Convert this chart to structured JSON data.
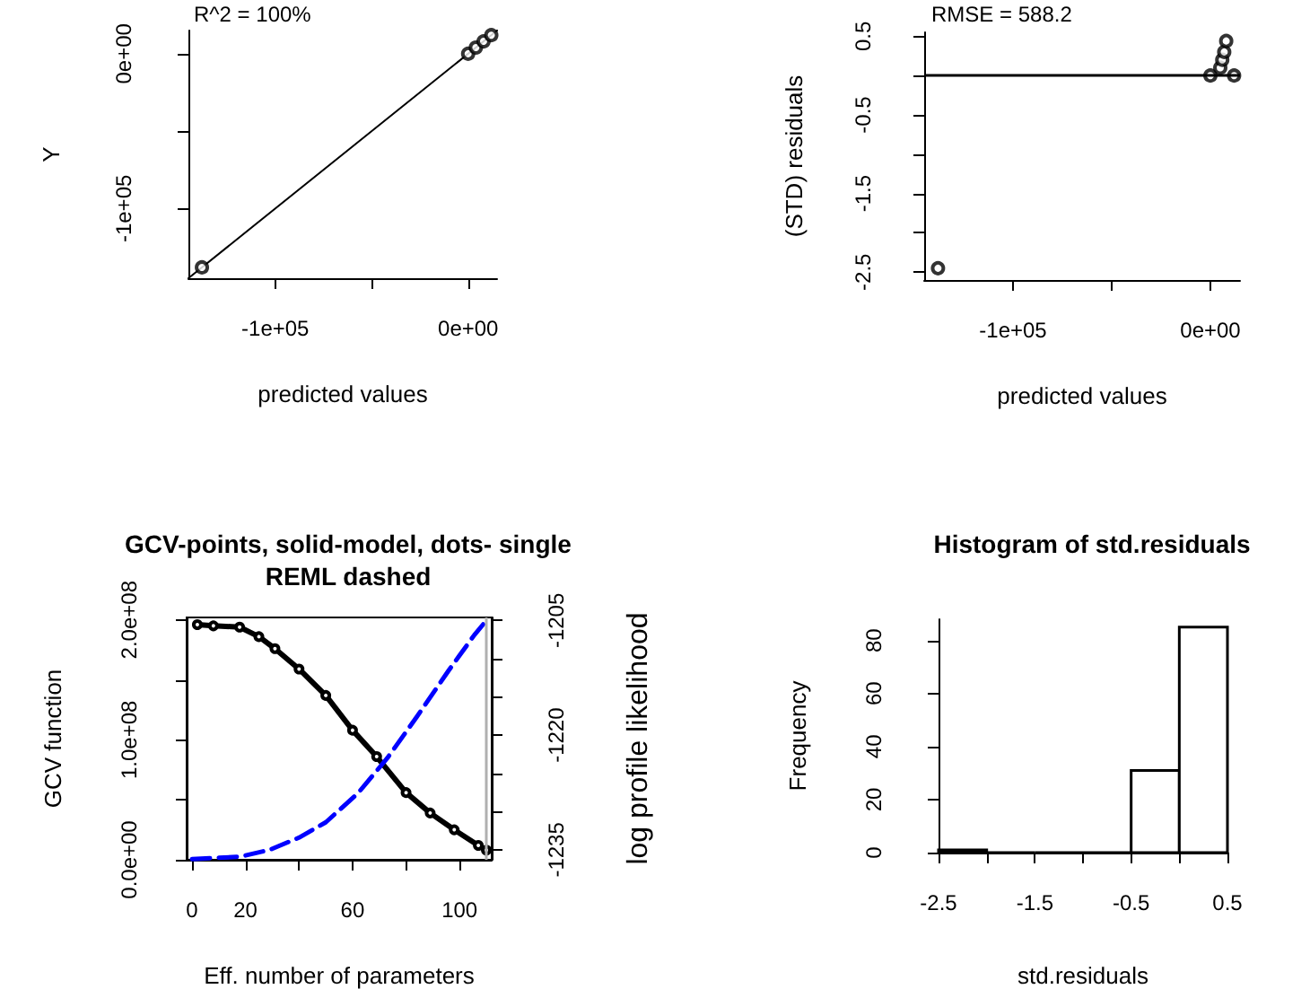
{
  "chart_data": [
    {
      "type": "scatter",
      "xlabel": "predicted values",
      "ylabel": "Y",
      "annotations": [
        "R^2 = 100%"
      ],
      "marker": "circle",
      "xlim": [
        -145000,
        15000
      ],
      "xticks": [
        {
          "value": -100000,
          "label": "-1e+05"
        },
        {
          "value": -50000,
          "label": null
        },
        {
          "value": 0,
          "label": "0e+00"
        }
      ],
      "ylim": [
        -145000,
        15000
      ],
      "yticks": [
        {
          "value": -100000,
          "label": "-1e+05"
        },
        {
          "value": -50000,
          "label": null
        },
        {
          "value": 0,
          "label": "0e+00"
        }
      ],
      "series": [
        {
          "color": "#000000",
          "x": [
            -138000,
            0,
            4000,
            8000,
            12000
          ],
          "values": [
            -138000,
            0,
            4000,
            8000,
            12000
          ]
        },
        {
          "type": "line",
          "marker": "none",
          "color": "#000000",
          "x": [
            -145000,
            15000
          ],
          "values": [
            -145000,
            15000
          ]
        }
      ]
    },
    {
      "type": "scatter",
      "xlabel": "predicted values",
      "ylabel": "(STD) residuals",
      "annotations": [
        "RMSE = 588.2"
      ],
      "marker": "circle",
      "xlim": [
        -145000,
        15000
      ],
      "xticks": [
        {
          "value": -100000,
          "label": "-1e+05"
        },
        {
          "value": -50000,
          "label": null
        },
        {
          "value": 0,
          "label": "0e+00"
        }
      ],
      "ylim": [
        -2.6,
        0.55
      ],
      "yticks": [
        0.5,
        {
          "value": 0,
          "label": null
        },
        -0.5,
        {
          "value": -1,
          "label": null
        },
        -1.5,
        {
          "value": -2,
          "label": null
        },
        -2.5
      ],
      "ref_lines": [
        {
          "axis": "y",
          "value": 0,
          "color": "#000000"
        }
      ],
      "series": [
        {
          "color": "#000000",
          "x": [
            -138000,
            0,
            5000,
            6000,
            7000,
            8000,
            12000
          ],
          "values": [
            -2.45,
            0,
            0.1,
            0.2,
            0.3,
            0.44,
            0
          ]
        }
      ]
    },
    {
      "type": "line",
      "title": "GCV-points, solid-model, dots- single\nREML dashed",
      "xlabel": "Eff. number of parameters",
      "ylabel": "GCV function",
      "y2label": "log profile likelihood",
      "xlim": [
        -2,
        112
      ],
      "xticks": [
        0,
        20,
        {
          "value": 40,
          "label": null
        },
        60,
        {
          "value": 80,
          "label": null
        },
        100
      ],
      "ylim": [
        0,
        202000000
      ],
      "yticks": [
        {
          "value": 0,
          "label": "0.0e+00"
        },
        {
          "value": 50000000,
          "label": null
        },
        {
          "value": 100000000,
          "label": "1.0e+08"
        },
        {
          "value": 150000000,
          "label": null
        },
        {
          "value": 200000000,
          "label": "2.0e+08"
        }
      ],
      "y2lim": [
        -1236.3,
        -1204.6
      ],
      "y2ticks": [
        -1235,
        {
          "value": -1230,
          "label": null
        },
        {
          "value": -1225,
          "label": null
        },
        -1220,
        {
          "value": -1215,
          "label": null
        },
        {
          "value": -1210,
          "label": null
        },
        -1205
      ],
      "ref_lines": [
        {
          "axis": "x",
          "value": 110,
          "color": "#b0b0b0"
        }
      ],
      "series": [
        {
          "color": "#000000",
          "marker": "circle",
          "line_style": "solid",
          "x": [
            2,
            8,
            17.8,
            25,
            31,
            40,
            50,
            60,
            69,
            80,
            89,
            98,
            107,
            110
          ],
          "values": [
            196000000,
            195000000,
            194000000,
            186000000,
            176000000,
            159000000,
            137000000,
            108000000,
            86000000,
            56000000,
            39000000,
            25000000,
            12000000,
            8000000
          ]
        },
        {
          "color": "#0000ff",
          "axis": "y2",
          "marker": "none",
          "line_style": "dashed",
          "x": [
            0,
            18,
            29,
            40,
            50,
            62,
            73,
            84,
            96,
            105.5,
            110
          ],
          "values": [
            -1236.2,
            -1235.9,
            -1235,
            -1233.4,
            -1231.4,
            -1227.6,
            -1223,
            -1217.6,
            -1211.5,
            -1206.9,
            -1205
          ]
        }
      ]
    },
    {
      "type": "histogram",
      "title": "Histogram of std.residuals",
      "xlabel": "std.residuals",
      "ylabel": "Frequency",
      "bins": [
        -2.5,
        -2,
        -1.5,
        -1,
        -0.5,
        0,
        0.5
      ],
      "values": [
        1,
        0,
        0,
        0,
        31,
        85
      ],
      "xlim": [
        -2.5,
        0.5
      ],
      "xticks": [
        -2.5,
        {
          "value": -2,
          "label": null
        },
        -1.5,
        {
          "value": -1,
          "label": null
        },
        -0.5,
        {
          "value": 0,
          "label": null
        },
        0.5
      ],
      "ylim": [
        0,
        88
      ],
      "yticks": [
        0,
        20,
        40,
        60,
        80
      ]
    }
  ]
}
